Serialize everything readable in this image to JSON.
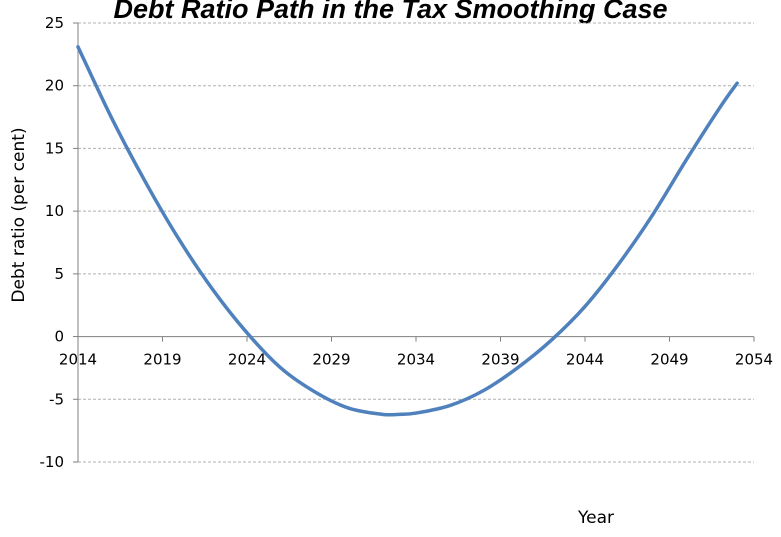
{
  "chart_data": {
    "type": "line",
    "title": "Debt Ratio Path in the Tax Smoothing Case",
    "xlabel": "Year",
    "ylabel": "Debt ratio (per cent)",
    "xlim": [
      2014,
      2054
    ],
    "ylim": [
      -10,
      25
    ],
    "x_ticks": [
      2014,
      2019,
      2024,
      2029,
      2034,
      2039,
      2044,
      2049,
      2054
    ],
    "y_ticks": [
      25,
      20,
      15,
      10,
      5,
      0,
      -5,
      -10
    ],
    "grid": "horizontal dashed",
    "legend": "none",
    "colors": {
      "line": "#4f81bd",
      "grid": "#b0b0b0",
      "axis": "#808080"
    },
    "series": [
      {
        "x": [
          2014,
          2016,
          2018,
          2020,
          2022,
          2024,
          2026,
          2028,
          2030,
          2032,
          2033,
          2034,
          2036,
          2038,
          2040,
          2042,
          2044,
          2046,
          2048,
          2050,
          2052,
          2053
        ],
        "values": [
          23.1,
          17.4,
          12.3,
          7.7,
          3.7,
          0.3,
          -2.5,
          -4.4,
          -5.7,
          -6.2,
          -6.2,
          -6.1,
          -5.5,
          -4.3,
          -2.5,
          -0.3,
          2.4,
          5.8,
          9.7,
          14.1,
          18.3,
          20.2
        ]
      }
    ]
  }
}
